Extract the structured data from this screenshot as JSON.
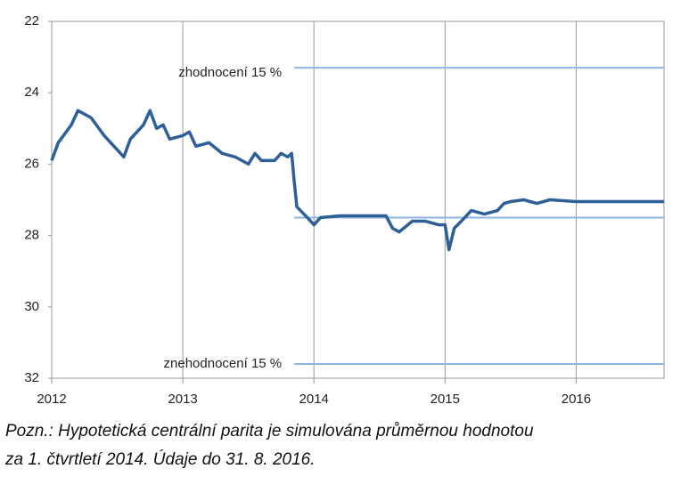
{
  "chart_data": {
    "type": "line",
    "x": [
      2012.0,
      2012.05,
      2012.15,
      2012.2,
      2012.3,
      2012.4,
      2012.5,
      2012.55,
      2012.6,
      2012.7,
      2012.75,
      2012.8,
      2012.85,
      2012.9,
      2013.0,
      2013.05,
      2013.1,
      2013.2,
      2013.3,
      2013.4,
      2013.5,
      2013.55,
      2013.6,
      2013.7,
      2013.75,
      2013.8,
      2013.83,
      2013.85,
      2013.87,
      2013.95,
      2014.0,
      2014.05,
      2014.2,
      2014.4,
      2014.55,
      2014.6,
      2014.65,
      2014.75,
      2014.85,
      2014.95,
      2015.0,
      2015.03,
      2015.07,
      2015.15,
      2015.2,
      2015.3,
      2015.4,
      2015.45,
      2015.5,
      2015.6,
      2015.7,
      2015.8,
      2016.0,
      2016.3,
      2016.5,
      2016.67
    ],
    "series": [
      {
        "color": "#2f5f98",
        "values": [
          25.9,
          25.4,
          24.9,
          24.5,
          24.7,
          25.2,
          25.6,
          25.8,
          25.3,
          24.9,
          24.5,
          25.0,
          24.9,
          25.3,
          25.2,
          25.1,
          25.5,
          25.4,
          25.7,
          25.8,
          26.0,
          25.7,
          25.9,
          25.9,
          25.7,
          25.8,
          25.7,
          26.5,
          27.2,
          27.5,
          27.7,
          27.5,
          27.45,
          27.45,
          27.45,
          27.8,
          27.9,
          27.6,
          27.6,
          27.7,
          27.7,
          28.4,
          27.8,
          27.5,
          27.3,
          27.4,
          27.3,
          27.1,
          27.05,
          27.0,
          27.1,
          27.0,
          27.05,
          27.05,
          27.05,
          27.05
        ]
      }
    ],
    "reference_lines": [
      {
        "label": "zhodnocení  15 %",
        "value": 23.3,
        "x_start": 2013.85,
        "color": "#8db4e2"
      },
      {
        "value": 27.5,
        "x_start": 2013.85,
        "color": "#8db4e2"
      },
      {
        "label": "znehodnocení 15 %",
        "value": 31.6,
        "x_start": 2013.85,
        "color": "#8db4e2"
      }
    ],
    "xlim": [
      2012,
      2016.67
    ],
    "xticks": [
      2012,
      2013,
      2014,
      2015,
      2016
    ],
    "ylim": [
      22,
      32
    ],
    "yticks": [
      22,
      24,
      26,
      28,
      30,
      32
    ],
    "y_inverted": true,
    "note": [
      "Pozn.: Hypotetická centrální parita je simulována průměrnou hodnotou",
      "za 1. čtvrtletí 2014. Údaje do 31. 8. 2016."
    ]
  }
}
